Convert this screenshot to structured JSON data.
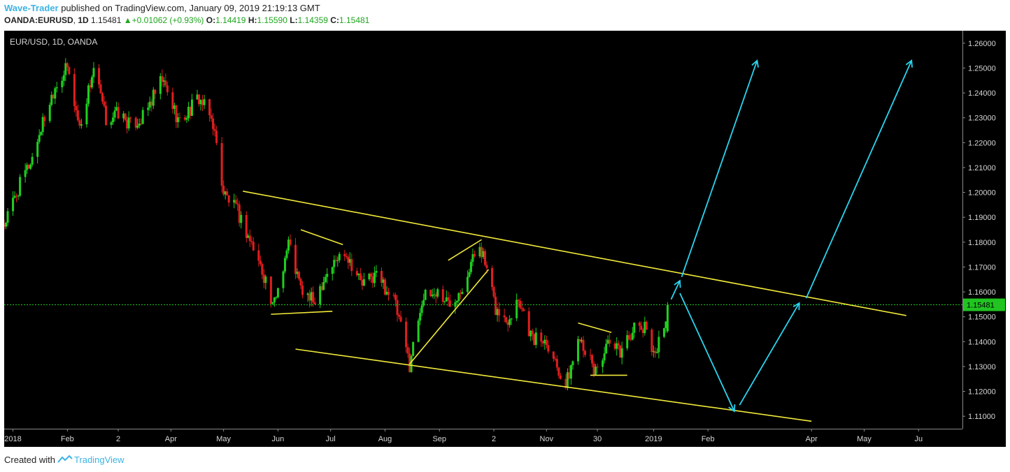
{
  "header": {
    "author": "Wave-Trader",
    "published_text": "published on TradingView.com, January 09, 2019 21:19:13 GMT",
    "symbol": "OANDA:EURUSD",
    "interval": "1D",
    "last": "1.15481",
    "change": "+0.01062 (+0.93%)",
    "o_label": "O:",
    "o_value": "1.14419",
    "h_label": "H:",
    "h_value": "1.15590",
    "l_label": "L:",
    "l_value": "1.14359",
    "c_label": "C:",
    "c_value": "1.15481"
  },
  "footer": {
    "created_with": "Created with",
    "brand": "TradingView"
  },
  "colors": {
    "up": "#1fd01f",
    "down": "#e01e1e",
    "trendline": "#f2ea3a",
    "arrow": "#2ad4f0",
    "price_line": "#21c421",
    "background": "#000000",
    "axis_text": "#d6d6d6"
  },
  "chart_data": {
    "type": "candlestick",
    "title": "EUR/USD, 1D, OANDA",
    "price_tag": "1.15481",
    "current_price": 1.15481,
    "ylim": [
      1.105,
      1.265
    ],
    "xlim": [
      "2017-12-27",
      "2019-06-26"
    ],
    "y_ticks": [
      "1.11000",
      "1.12000",
      "1.13000",
      "1.14000",
      "1.15000",
      "1.16000",
      "1.17000",
      "1.18000",
      "1.19000",
      "1.20000",
      "1.21000",
      "1.22000",
      "1.23000",
      "1.24000",
      "1.25000",
      "1.26000"
    ],
    "x_ticks": [
      {
        "label": "2018",
        "date": "2018-01-01"
      },
      {
        "label": "Feb",
        "date": "2018-02-01"
      },
      {
        "label": "2",
        "date": "2018-03-02"
      },
      {
        "label": "Apr",
        "date": "2018-04-01"
      },
      {
        "label": "May",
        "date": "2018-05-01"
      },
      {
        "label": "Jun",
        "date": "2018-06-01"
      },
      {
        "label": "Jul",
        "date": "2018-07-01"
      },
      {
        "label": "Aug",
        "date": "2018-08-01"
      },
      {
        "label": "Sep",
        "date": "2018-09-01"
      },
      {
        "label": "2",
        "date": "2018-10-02"
      },
      {
        "label": "Nov",
        "date": "2018-11-01"
      },
      {
        "label": "30",
        "date": "2018-11-30"
      },
      {
        "label": "2019",
        "date": "2019-01-01"
      },
      {
        "label": "Feb",
        "date": "2019-02-01"
      },
      {
        "label": "Apr",
        "date": "2019-04-01"
      },
      {
        "label": "May",
        "date": "2019-05-01"
      },
      {
        "label": "Ju",
        "date": "2019-06-01"
      }
    ],
    "price_path": [
      [
        "2017-12-27",
        1.187
      ],
      [
        "2018-01-05",
        1.203
      ],
      [
        "2018-01-12",
        1.214
      ],
      [
        "2018-01-17",
        1.226
      ],
      [
        "2018-01-25",
        1.243
      ],
      [
        "2018-02-01",
        1.25
      ],
      [
        "2018-02-08",
        1.226
      ],
      [
        "2018-02-16",
        1.25
      ],
      [
        "2018-02-23",
        1.229
      ],
      [
        "2018-03-02",
        1.232
      ],
      [
        "2018-03-09",
        1.227
      ],
      [
        "2018-03-16",
        1.23
      ],
      [
        "2018-03-27",
        1.245
      ],
      [
        "2018-04-06",
        1.228
      ],
      [
        "2018-04-17",
        1.238
      ],
      [
        "2018-04-25",
        1.228
      ],
      [
        "2018-05-01",
        1.2
      ],
      [
        "2018-05-09",
        1.192
      ],
      [
        "2018-05-16",
        1.181
      ],
      [
        "2018-05-25",
        1.165
      ],
      [
        "2018-05-29",
        1.153
      ],
      [
        "2018-06-07",
        1.18
      ],
      [
        "2018-06-14",
        1.161
      ],
      [
        "2018-06-21",
        1.156
      ],
      [
        "2018-06-28",
        1.167
      ],
      [
        "2018-07-09",
        1.177
      ],
      [
        "2018-07-19",
        1.163
      ],
      [
        "2018-07-27",
        1.167
      ],
      [
        "2018-08-06",
        1.157
      ],
      [
        "2018-08-15",
        1.131
      ],
      [
        "2018-08-22",
        1.157
      ],
      [
        "2018-08-31",
        1.16
      ],
      [
        "2018-09-07",
        1.155
      ],
      [
        "2018-09-14",
        1.163
      ],
      [
        "2018-09-24",
        1.18
      ],
      [
        "2018-10-03",
        1.153
      ],
      [
        "2018-10-09",
        1.148
      ],
      [
        "2018-10-16",
        1.158
      ],
      [
        "2018-10-24",
        1.141
      ],
      [
        "2018-11-01",
        1.141
      ],
      [
        "2018-11-12",
        1.122
      ],
      [
        "2018-11-20",
        1.143
      ],
      [
        "2018-11-28",
        1.128
      ],
      [
        "2018-12-06",
        1.138
      ],
      [
        "2018-12-13",
        1.136
      ],
      [
        "2018-12-20",
        1.145
      ],
      [
        "2018-12-28",
        1.145
      ],
      [
        "2019-01-02",
        1.135
      ],
      [
        "2019-01-07",
        1.147
      ],
      [
        "2019-01-09",
        1.1548
      ]
    ],
    "trendlines": [
      {
        "name": "channel-upper",
        "from": [
          "2018-05-12",
          1.2005
        ],
        "to": [
          "2019-05-25",
          1.1505
        ]
      },
      {
        "name": "channel-lower",
        "from": [
          "2018-06-11",
          1.137
        ],
        "to": [
          "2019-04-01",
          1.108
        ]
      },
      {
        "name": "flag-1-upper",
        "from": [
          "2018-06-14",
          1.185
        ],
        "to": [
          "2018-07-08",
          1.179
        ]
      },
      {
        "name": "flag-1-lower",
        "from": [
          "2018-05-28",
          1.151
        ],
        "to": [
          "2018-07-02",
          1.1522
        ]
      },
      {
        "name": "wedge-lower",
        "from": [
          "2018-08-15",
          1.131
        ],
        "to": [
          "2018-09-29",
          1.169
        ]
      },
      {
        "name": "wedge-upper",
        "from": [
          "2018-09-06",
          1.1727
        ],
        "to": [
          "2018-09-25",
          1.181
        ]
      },
      {
        "name": "flag-2-upper",
        "from": [
          "2018-11-19",
          1.1475
        ],
        "to": [
          "2018-12-08",
          1.1437
        ]
      },
      {
        "name": "flag-2-lower",
        "from": [
          "2018-11-26",
          1.1265
        ],
        "to": [
          "2018-12-17",
          1.1265
        ]
      }
    ],
    "projection_arrows": [
      {
        "name": "projection-1",
        "from": [
          "2019-01-11",
          1.157
        ],
        "to": [
          "2019-01-16",
          1.1645
        ]
      },
      {
        "name": "projection-2",
        "from": [
          "2019-01-16",
          1.1595
        ],
        "to": [
          "2019-02-16",
          1.112
        ]
      },
      {
        "name": "projection-3",
        "from": [
          "2019-02-19",
          1.1145
        ],
        "to": [
          "2019-03-25",
          1.1555
        ]
      },
      {
        "name": "projection-4",
        "from": [
          "2019-01-17",
          1.166
        ],
        "to": [
          "2019-03-01",
          1.253
        ]
      },
      {
        "name": "projection-5",
        "from": [
          "2019-03-29",
          1.1575
        ],
        "to": [
          "2019-05-28",
          1.253
        ]
      }
    ]
  }
}
